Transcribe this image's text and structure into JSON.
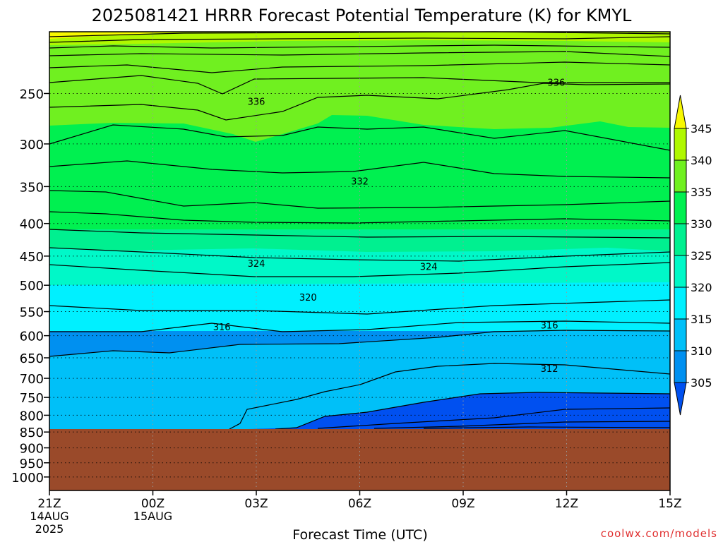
{
  "title": "2025081421 HRRR Forecast Potential Temperature (K) for KMYL",
  "xlabel": "Forecast Time (UTC)",
  "credit": "coolwx.com/models",
  "chart_data": {
    "type": "heatmap",
    "title": "2025081421 HRRR Forecast Potential Temperature (K) for KMYL",
    "xlabel": "Forecast Time (UTC)",
    "ylabel": "",
    "x": [
      "21Z",
      "00Z",
      "03Z",
      "06Z",
      "09Z",
      "12Z",
      "15Z"
    ],
    "x_sublabels": [
      [
        "14AUG",
        "2025"
      ],
      [
        "15AUG"
      ],
      [],
      [],
      [],
      [],
      []
    ],
    "x_hours": [
      0,
      3,
      6,
      9,
      12,
      15,
      18
    ],
    "y_ticks": [
      250,
      300,
      350,
      400,
      450,
      500,
      550,
      600,
      650,
      700,
      750,
      800,
      850,
      900,
      950,
      1000
    ],
    "y_scale": "log",
    "ylim": [
      1050,
      200
    ],
    "ground_level_hPa": 850,
    "grid": true,
    "colorbar": {
      "levels": [
        305,
        310,
        315,
        320,
        325,
        330,
        335,
        340,
        345
      ],
      "colors": [
        "#0050f0",
        "#0090f0",
        "#00c0f8",
        "#00f0ff",
        "#00f8c8",
        "#00f090",
        "#00f050",
        "#70f020",
        "#b0f800",
        "#f8f800"
      ],
      "placement": "right"
    },
    "contour_labels": [
      {
        "value": "336",
        "hour": 6,
        "p": 257
      },
      {
        "value": "336",
        "hour": 14.7,
        "p": 240
      },
      {
        "value": "332",
        "hour": 9,
        "p": 343
      },
      {
        "value": "324",
        "hour": 6,
        "p": 462
      },
      {
        "value": "324",
        "hour": 11,
        "p": 467
      },
      {
        "value": "320",
        "hour": 7.5,
        "p": 522
      },
      {
        "value": "316",
        "hour": 5,
        "p": 581
      },
      {
        "value": "316",
        "hour": 14.5,
        "p": 577
      },
      {
        "value": "312",
        "hour": 14.5,
        "p": 675
      }
    ]
  }
}
